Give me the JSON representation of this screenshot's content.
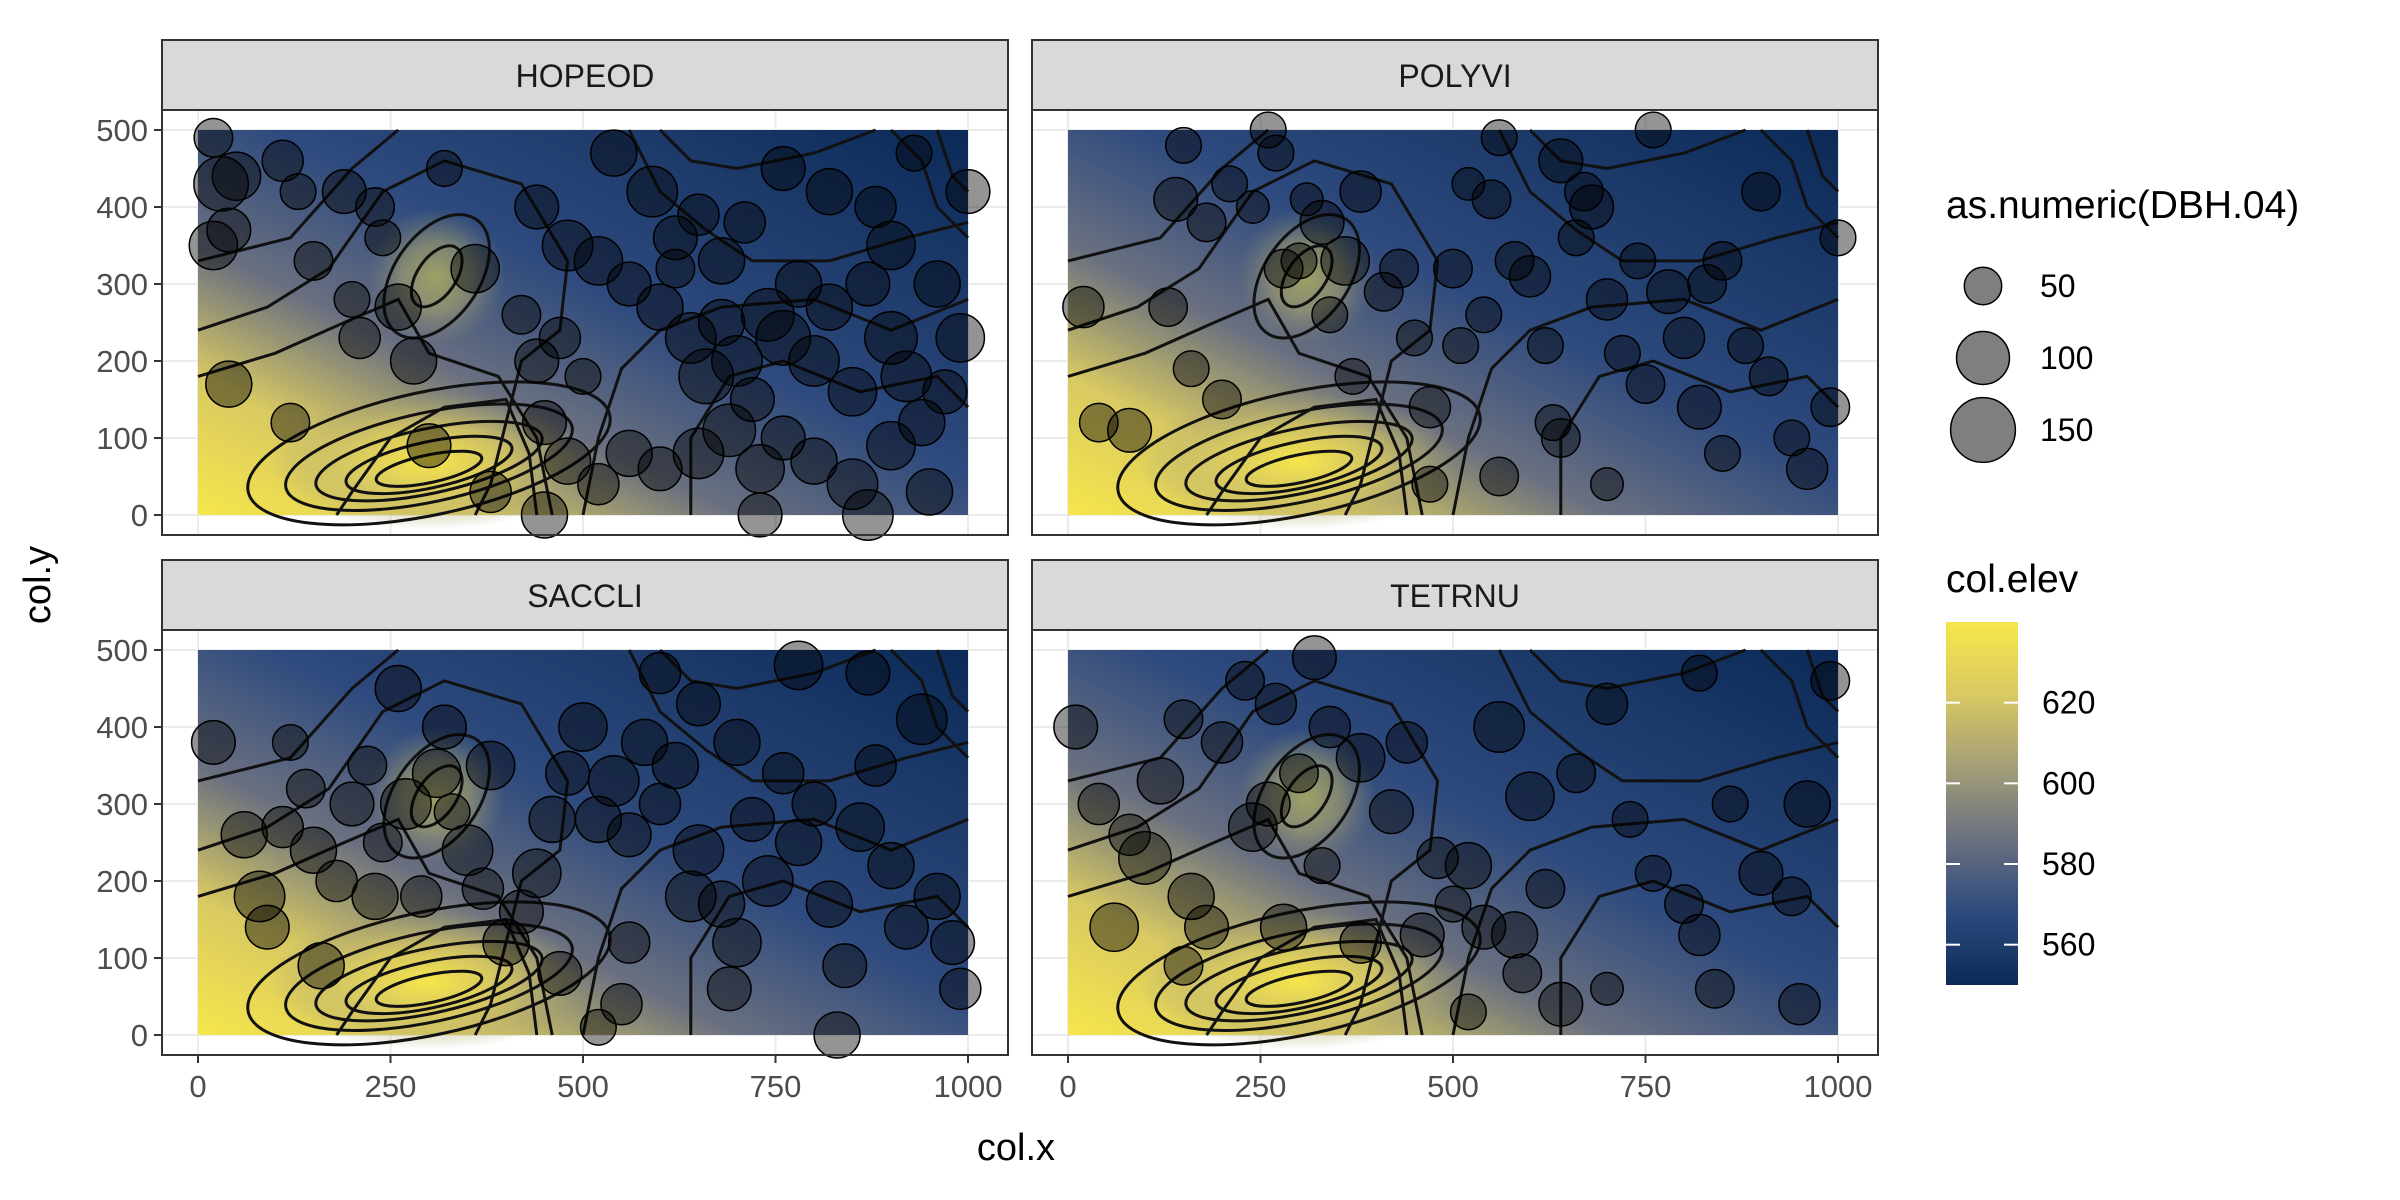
{
  "chart_data": {
    "type": "faceted raster with contours and scatter",
    "x_var": "col.x",
    "y_var": "col.y",
    "xlabel": "col.x",
    "ylabel": "col.y",
    "xlim": [
      0,
      1000
    ],
    "ylim": [
      0,
      500
    ],
    "x_ticks": [
      0,
      250,
      500,
      750,
      1000
    ],
    "y_ticks": [
      0,
      100,
      200,
      300,
      400,
      500
    ],
    "grid": true,
    "facets": [
      "HOPEOD",
      "POLYVI",
      "SACCLI",
      "TETRNU"
    ],
    "fill_legend": {
      "title": "col.elev",
      "breaks": [
        560,
        580,
        600,
        620
      ],
      "range": [
        550,
        640
      ],
      "colors": [
        "#0b2a57",
        "#2e4a7e",
        "#6a7080",
        "#a39e78",
        "#d8c962",
        "#f7e64a"
      ]
    },
    "size_legend": {
      "title": "as.numeric(DBH.04)",
      "breaks": [
        50,
        100,
        150
      ]
    },
    "elevation_peaks": [
      {
        "x": 250,
        "y": 50,
        "elev": 640
      },
      {
        "x": 350,
        "y": 75,
        "elev": 640
      },
      {
        "x": 310,
        "y": 310,
        "elev": 595
      }
    ],
    "points": {
      "HOPEOD": [
        [
          30,
          430,
          140
        ],
        [
          20,
          490,
          70
        ],
        [
          50,
          440,
          110
        ],
        [
          110,
          460,
          80
        ],
        [
          130,
          420,
          60
        ],
        [
          40,
          370,
          90
        ],
        [
          20,
          350,
          110
        ],
        [
          190,
          420,
          90
        ],
        [
          230,
          400,
          70
        ],
        [
          240,
          360,
          60
        ],
        [
          320,
          450,
          60
        ],
        [
          540,
          470,
          100
        ],
        [
          590,
          420,
          120
        ],
        [
          650,
          390,
          80
        ],
        [
          760,
          450,
          90
        ],
        [
          930,
          470,
          60
        ],
        [
          1000,
          420,
          90
        ],
        [
          40,
          170,
          100
        ],
        [
          120,
          120,
          70
        ],
        [
          210,
          230,
          80
        ],
        [
          260,
          270,
          100
        ],
        [
          360,
          320,
          110
        ],
        [
          420,
          260,
          70
        ],
        [
          440,
          200,
          90
        ],
        [
          470,
          230,
          80
        ],
        [
          500,
          180,
          60
        ],
        [
          520,
          330,
          110
        ],
        [
          560,
          300,
          90
        ],
        [
          600,
          270,
          100
        ],
        [
          620,
          320,
          70
        ],
        [
          640,
          230,
          120
        ],
        [
          660,
          180,
          140
        ],
        [
          680,
          250,
          100
        ],
        [
          700,
          200,
          120
        ],
        [
          720,
          150,
          90
        ],
        [
          740,
          260,
          130
        ],
        [
          760,
          230,
          140
        ],
        [
          780,
          300,
          100
        ],
        [
          800,
          200,
          120
        ],
        [
          820,
          270,
          100
        ],
        [
          850,
          160,
          110
        ],
        [
          870,
          300,
          90
        ],
        [
          900,
          230,
          130
        ],
        [
          920,
          180,
          120
        ],
        [
          940,
          120,
          100
        ],
        [
          970,
          160,
          90
        ],
        [
          990,
          230,
          110
        ],
        [
          450,
          120,
          90
        ],
        [
          480,
          70,
          100
        ],
        [
          520,
          40,
          80
        ],
        [
          560,
          80,
          100
        ],
        [
          600,
          60,
          90
        ],
        [
          650,
          80,
          120
        ],
        [
          690,
          110,
          130
        ],
        [
          730,
          60,
          110
        ],
        [
          760,
          100,
          90
        ],
        [
          800,
          70,
          100
        ],
        [
          850,
          40,
          120
        ],
        [
          900,
          90,
          110
        ],
        [
          950,
          30,
          100
        ],
        [
          870,
          0,
          120
        ],
        [
          730,
          0,
          90
        ],
        [
          450,
          0,
          100
        ],
        [
          380,
          30,
          80
        ],
        [
          300,
          90,
          90
        ],
        [
          280,
          200,
          100
        ],
        [
          200,
          280,
          60
        ],
        [
          150,
          330,
          70
        ],
        [
          960,
          300,
          100
        ],
        [
          900,
          350,
          110
        ],
        [
          880,
          400,
          80
        ],
        [
          620,
          360,
          90
        ],
        [
          680,
          330,
          100
        ],
        [
          710,
          380,
          80
        ],
        [
          440,
          400,
          90
        ],
        [
          480,
          350,
          120
        ],
        [
          820,
          420,
          100
        ]
      ],
      "POLYVI": [
        [
          20,
          270,
          80
        ],
        [
          40,
          120,
          70
        ],
        [
          80,
          110,
          90
        ],
        [
          130,
          270,
          70
        ],
        [
          140,
          410,
          90
        ],
        [
          150,
          480,
          60
        ],
        [
          160,
          190,
          60
        ],
        [
          180,
          380,
          70
        ],
        [
          210,
          430,
          60
        ],
        [
          240,
          400,
          50
        ],
        [
          270,
          470,
          60
        ],
        [
          280,
          320,
          70
        ],
        [
          310,
          410,
          50
        ],
        [
          330,
          380,
          90
        ],
        [
          340,
          260,
          60
        ],
        [
          360,
          330,
          110
        ],
        [
          370,
          180,
          60
        ],
        [
          380,
          420,
          80
        ],
        [
          410,
          290,
          70
        ],
        [
          450,
          230,
          60
        ],
        [
          470,
          140,
          80
        ],
        [
          500,
          320,
          70
        ],
        [
          510,
          220,
          60
        ],
        [
          520,
          430,
          50
        ],
        [
          540,
          260,
          60
        ],
        [
          550,
          410,
          70
        ],
        [
          560,
          490,
          60
        ],
        [
          580,
          330,
          70
        ],
        [
          600,
          310,
          80
        ],
        [
          620,
          220,
          60
        ],
        [
          640,
          100,
          70
        ],
        [
          660,
          360,
          60
        ],
        [
          680,
          400,
          90
        ],
        [
          700,
          280,
          80
        ],
        [
          720,
          210,
          60
        ],
        [
          750,
          170,
          70
        ],
        [
          780,
          290,
          90
        ],
        [
          800,
          230,
          80
        ],
        [
          820,
          140,
          90
        ],
        [
          850,
          330,
          70
        ],
        [
          880,
          220,
          60
        ],
        [
          910,
          180,
          70
        ],
        [
          940,
          100,
          60
        ],
        [
          960,
          60,
          80
        ],
        [
          990,
          140,
          70
        ],
        [
          1000,
          360,
          60
        ],
        [
          900,
          420,
          70
        ],
        [
          760,
          500,
          60
        ],
        [
          630,
          120,
          60
        ],
        [
          560,
          50,
          70
        ],
        [
          470,
          40,
          60
        ],
        [
          700,
          40,
          50
        ],
        [
          850,
          80,
          60
        ],
        [
          430,
          320,
          70
        ],
        [
          640,
          460,
          90
        ],
        [
          670,
          420,
          70
        ],
        [
          740,
          330,
          60
        ],
        [
          830,
          300,
          70
        ],
        [
          260,
          500,
          60
        ],
        [
          300,
          330,
          60
        ],
        [
          200,
          150,
          70
        ]
      ],
      "SACCLI": [
        [
          20,
          380,
          90
        ],
        [
          60,
          260,
          100
        ],
        [
          80,
          180,
          120
        ],
        [
          90,
          140,
          90
        ],
        [
          110,
          270,
          80
        ],
        [
          120,
          380,
          60
        ],
        [
          140,
          320,
          70
        ],
        [
          150,
          240,
          100
        ],
        [
          160,
          90,
          100
        ],
        [
          180,
          200,
          80
        ],
        [
          200,
          300,
          90
        ],
        [
          220,
          350,
          70
        ],
        [
          230,
          180,
          100
        ],
        [
          240,
          250,
          70
        ],
        [
          260,
          450,
          100
        ],
        [
          270,
          300,
          120
        ],
        [
          290,
          180,
          80
        ],
        [
          310,
          340,
          110
        ],
        [
          320,
          400,
          90
        ],
        [
          330,
          290,
          60
        ],
        [
          350,
          240,
          120
        ],
        [
          370,
          190,
          80
        ],
        [
          380,
          350,
          110
        ],
        [
          400,
          120,
          100
        ],
        [
          420,
          160,
          90
        ],
        [
          440,
          210,
          110
        ],
        [
          460,
          280,
          100
        ],
        [
          480,
          340,
          90
        ],
        [
          500,
          400,
          110
        ],
        [
          520,
          280,
          100
        ],
        [
          540,
          330,
          120
        ],
        [
          560,
          260,
          90
        ],
        [
          580,
          380,
          100
        ],
        [
          600,
          300,
          80
        ],
        [
          620,
          350,
          100
        ],
        [
          650,
          240,
          120
        ],
        [
          680,
          170,
          100
        ],
        [
          700,
          120,
          110
        ],
        [
          720,
          280,
          90
        ],
        [
          740,
          200,
          120
        ],
        [
          760,
          340,
          80
        ],
        [
          780,
          250,
          100
        ],
        [
          800,
          300,
          90
        ],
        [
          820,
          170,
          100
        ],
        [
          840,
          90,
          90
        ],
        [
          860,
          270,
          110
        ],
        [
          880,
          350,
          80
        ],
        [
          900,
          220,
          100
        ],
        [
          920,
          140,
          90
        ],
        [
          940,
          410,
          120
        ],
        [
          960,
          180,
          100
        ],
        [
          980,
          120,
          90
        ],
        [
          990,
          60,
          80
        ],
        [
          700,
          380,
          100
        ],
        [
          650,
          430,
          90
        ],
        [
          600,
          470,
          80
        ],
        [
          780,
          480,
          110
        ],
        [
          870,
          470,
          90
        ],
        [
          550,
          40,
          80
        ],
        [
          470,
          80,
          90
        ],
        [
          520,
          10,
          60
        ],
        [
          830,
          0,
          100
        ],
        [
          640,
          180,
          120
        ],
        [
          690,
          60,
          90
        ],
        [
          560,
          120,
          80
        ]
      ],
      "TETRNU": [
        [
          10,
          400,
          90
        ],
        [
          40,
          300,
          80
        ],
        [
          60,
          140,
          110
        ],
        [
          80,
          260,
          80
        ],
        [
          100,
          230,
          130
        ],
        [
          120,
          330,
          100
        ],
        [
          150,
          410,
          70
        ],
        [
          160,
          180,
          100
        ],
        [
          180,
          140,
          90
        ],
        [
          200,
          380,
          80
        ],
        [
          230,
          460,
          70
        ],
        [
          240,
          270,
          110
        ],
        [
          260,
          300,
          90
        ],
        [
          270,
          430,
          80
        ],
        [
          280,
          140,
          100
        ],
        [
          300,
          340,
          70
        ],
        [
          320,
          490,
          90
        ],
        [
          340,
          400,
          80
        ],
        [
          380,
          360,
          110
        ],
        [
          420,
          290,
          90
        ],
        [
          440,
          380,
          80
        ],
        [
          460,
          130,
          90
        ],
        [
          480,
          230,
          80
        ],
        [
          500,
          170,
          60
        ],
        [
          520,
          220,
          100
        ],
        [
          540,
          140,
          90
        ],
        [
          560,
          400,
          120
        ],
        [
          580,
          130,
          100
        ],
        [
          600,
          310,
          110
        ],
        [
          620,
          190,
          70
        ],
        [
          640,
          40,
          90
        ],
        [
          660,
          340,
          70
        ],
        [
          700,
          430,
          80
        ],
        [
          730,
          280,
          60
        ],
        [
          760,
          210,
          60
        ],
        [
          800,
          170,
          70
        ],
        [
          820,
          130,
          80
        ],
        [
          840,
          60,
          70
        ],
        [
          860,
          300,
          60
        ],
        [
          900,
          210,
          90
        ],
        [
          940,
          180,
          70
        ],
        [
          960,
          300,
          100
        ],
        [
          990,
          460,
          70
        ],
        [
          950,
          40,
          80
        ],
        [
          820,
          470,
          60
        ],
        [
          700,
          60,
          50
        ],
        [
          590,
          80,
          70
        ],
        [
          520,
          30,
          60
        ],
        [
          380,
          120,
          80
        ],
        [
          330,
          220,
          60
        ],
        [
          150,
          90,
          70
        ]
      ]
    }
  }
}
